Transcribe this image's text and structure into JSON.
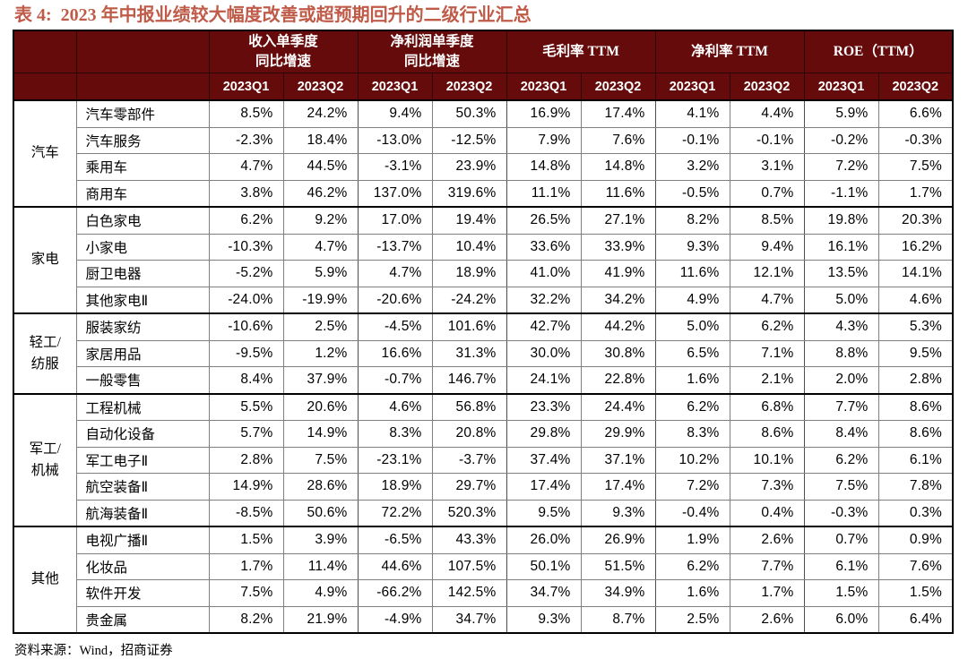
{
  "title": {
    "label": "表 4:",
    "text": "2023 年中报业绩较大幅度改善或超预期回升的二级行业汇总"
  },
  "source_note": "资料来源：Wind，招商证券",
  "colors": {
    "header_bg": "#660B0B",
    "title_text": "#BF5B48",
    "grid_line": "#7F7F7F",
    "heavy_line": "#000000"
  },
  "table": {
    "metric_groups": [
      "收入单季度\n同比增速",
      "净利润单季度\n同比增速",
      "毛利率 TTM",
      "净利率 TTM",
      "ROE（TTM）"
    ],
    "quarter_headers": [
      "2023Q1",
      "2023Q2"
    ],
    "row_groups": [
      {
        "label": "汽车",
        "rows": [
          {
            "name": "汽车零部件",
            "values": [
              "8.5%",
              "24.2%",
              "9.4%",
              "50.3%",
              "16.9%",
              "17.4%",
              "4.1%",
              "4.4%",
              "5.9%",
              "6.6%"
            ]
          },
          {
            "name": "汽车服务",
            "values": [
              "-2.3%",
              "18.4%",
              "-13.0%",
              "-12.5%",
              "7.9%",
              "7.6%",
              "-0.1%",
              "-0.1%",
              "-0.2%",
              "-0.3%"
            ]
          },
          {
            "name": "乘用车",
            "values": [
              "4.7%",
              "44.5%",
              "-3.1%",
              "23.9%",
              "14.8%",
              "14.8%",
              "3.2%",
              "3.1%",
              "7.2%",
              "7.5%"
            ]
          },
          {
            "name": "商用车",
            "values": [
              "3.8%",
              "46.2%",
              "137.0%",
              "319.6%",
              "11.1%",
              "11.6%",
              "-0.5%",
              "0.7%",
              "-1.1%",
              "1.7%"
            ]
          }
        ]
      },
      {
        "label": "家电",
        "rows": [
          {
            "name": "白色家电",
            "values": [
              "6.2%",
              "9.2%",
              "17.0%",
              "19.4%",
              "26.5%",
              "27.1%",
              "8.2%",
              "8.5%",
              "19.8%",
              "20.3%"
            ]
          },
          {
            "name": "小家电",
            "values": [
              "-10.3%",
              "4.7%",
              "-13.7%",
              "10.4%",
              "33.6%",
              "33.9%",
              "9.3%",
              "9.4%",
              "16.1%",
              "16.2%"
            ]
          },
          {
            "name": "厨卫电器",
            "values": [
              "-5.2%",
              "5.9%",
              "4.7%",
              "18.9%",
              "41.0%",
              "41.9%",
              "11.6%",
              "12.1%",
              "13.5%",
              "14.1%"
            ]
          },
          {
            "name": "其他家电Ⅱ",
            "values": [
              "-24.0%",
              "-19.9%",
              "-20.6%",
              "-24.2%",
              "32.2%",
              "34.2%",
              "4.9%",
              "4.7%",
              "5.0%",
              "4.6%"
            ]
          }
        ]
      },
      {
        "label": "轻工/\n纺服",
        "rows": [
          {
            "name": "服装家纺",
            "values": [
              "-10.6%",
              "2.5%",
              "-4.5%",
              "101.6%",
              "42.7%",
              "44.2%",
              "5.0%",
              "6.2%",
              "4.3%",
              "5.3%"
            ]
          },
          {
            "name": "家居用品",
            "values": [
              "-9.5%",
              "1.2%",
              "16.6%",
              "31.3%",
              "30.0%",
              "30.8%",
              "6.5%",
              "7.1%",
              "8.8%",
              "9.5%"
            ]
          },
          {
            "name": "一般零售",
            "values": [
              "8.4%",
              "37.9%",
              "-0.7%",
              "146.7%",
              "24.1%",
              "22.8%",
              "1.6%",
              "2.1%",
              "2.0%",
              "2.8%"
            ]
          }
        ]
      },
      {
        "label": "军工/\n机械",
        "rows": [
          {
            "name": "工程机械",
            "values": [
              "5.5%",
              "20.6%",
              "4.6%",
              "56.8%",
              "23.3%",
              "24.4%",
              "6.2%",
              "6.8%",
              "7.7%",
              "8.6%"
            ]
          },
          {
            "name": "自动化设备",
            "values": [
              "5.7%",
              "14.9%",
              "8.3%",
              "20.8%",
              "29.8%",
              "29.9%",
              "8.3%",
              "8.6%",
              "8.4%",
              "8.6%"
            ]
          },
          {
            "name": "军工电子Ⅱ",
            "values": [
              "2.8%",
              "7.5%",
              "-23.1%",
              "-3.7%",
              "37.4%",
              "37.1%",
              "10.2%",
              "10.1%",
              "6.2%",
              "6.1%"
            ]
          },
          {
            "name": "航空装备Ⅱ",
            "values": [
              "14.9%",
              "28.6%",
              "18.9%",
              "29.7%",
              "17.4%",
              "17.4%",
              "7.2%",
              "7.3%",
              "7.5%",
              "7.8%"
            ]
          },
          {
            "name": "航海装备Ⅱ",
            "values": [
              "-8.5%",
              "50.6%",
              "72.2%",
              "520.3%",
              "9.5%",
              "9.3%",
              "-0.4%",
              "0.4%",
              "-0.3%",
              "0.3%"
            ]
          }
        ]
      },
      {
        "label": "其他",
        "rows": [
          {
            "name": "电视广播Ⅱ",
            "values": [
              "1.5%",
              "3.9%",
              "-6.5%",
              "43.3%",
              "26.0%",
              "26.9%",
              "1.9%",
              "2.6%",
              "0.7%",
              "0.9%"
            ]
          },
          {
            "name": "化妆品",
            "values": [
              "1.7%",
              "11.4%",
              "44.6%",
              "107.5%",
              "50.1%",
              "51.5%",
              "6.2%",
              "7.7%",
              "6.1%",
              "7.6%"
            ]
          },
          {
            "name": "软件开发",
            "values": [
              "7.5%",
              "4.9%",
              "-66.2%",
              "142.5%",
              "34.7%",
              "34.9%",
              "1.6%",
              "1.7%",
              "1.5%",
              "1.5%"
            ]
          },
          {
            "name": "贵金属",
            "values": [
              "8.2%",
              "21.9%",
              "-4.9%",
              "34.7%",
              "9.3%",
              "8.7%",
              "2.5%",
              "2.6%",
              "6.0%",
              "6.4%"
            ]
          }
        ]
      }
    ]
  }
}
